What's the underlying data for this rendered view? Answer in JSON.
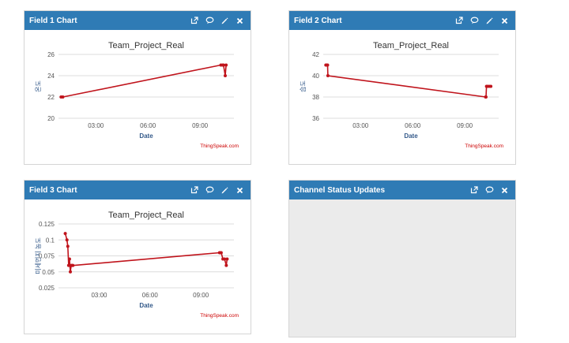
{
  "panels": [
    {
      "title": "Field 1 Chart",
      "icons": [
        "external-link-icon",
        "comment-icon",
        "pencil-icon",
        "close-icon"
      ],
      "chart_title": "Team_Project_Real",
      "ylabel": "온도",
      "xlabel": "Date",
      "credit": "ThingSpeak.com"
    },
    {
      "title": "Field 2 Chart",
      "icons": [
        "external-link-icon",
        "comment-icon",
        "pencil-icon",
        "close-icon"
      ],
      "chart_title": "Team_Project_Real",
      "ylabel": "습도",
      "xlabel": "Date",
      "credit": "ThingSpeak.com"
    },
    {
      "title": "Field 3 Chart",
      "icons": [
        "external-link-icon",
        "comment-icon",
        "pencil-icon",
        "close-icon"
      ],
      "chart_title": "Team_Project_Real",
      "ylabel": "미세먼지 농도",
      "xlabel": "Date",
      "credit": "ThingSpeak.com"
    },
    {
      "title": "Channel Status Updates",
      "icons": [
        "external-link-icon",
        "comment-icon",
        "close-icon"
      ]
    }
  ],
  "colors": {
    "header": "#2f7bb5",
    "series": "#c0141c",
    "axis_label": "#345a8a",
    "credit": "#cc0000"
  },
  "chart_data": [
    {
      "type": "line",
      "title": "Team_Project_Real",
      "xlabel": "Date",
      "ylabel": "온도",
      "x_ticks": [
        "03:00",
        "06:00",
        "09:00"
      ],
      "x_tick_hours": [
        3,
        6,
        9
      ],
      "xlim_hours": [
        0.85,
        10.95
      ],
      "y_ticks": [
        20,
        22,
        24,
        26
      ],
      "ylim": [
        20,
        26
      ],
      "grid": true,
      "series": [
        {
          "x_hours": [
            1.0,
            1.1,
            10.2,
            10.3,
            10.35,
            10.45,
            10.5
          ],
          "values": [
            22,
            22,
            25,
            25,
            25,
            24,
            25
          ]
        }
      ]
    },
    {
      "type": "line",
      "title": "Team_Project_Real",
      "xlabel": "Date",
      "ylabel": "습도",
      "x_ticks": [
        "03:00",
        "06:00",
        "09:00"
      ],
      "x_tick_hours": [
        3,
        6,
        9
      ],
      "xlim_hours": [
        0.85,
        10.95
      ],
      "y_ticks": [
        36,
        38,
        40,
        42
      ],
      "ylim": [
        36,
        42
      ],
      "grid": true,
      "series": [
        {
          "x_hours": [
            1.0,
            1.05,
            1.1,
            1.12,
            10.2,
            10.22,
            10.25,
            10.3,
            10.4,
            10.5
          ],
          "values": [
            41,
            41,
            41,
            40,
            38,
            38,
            39,
            39,
            39,
            39
          ]
        }
      ]
    },
    {
      "type": "line",
      "title": "Team_Project_Real",
      "xlabel": "Date",
      "ylabel": "미세먼지 농도",
      "x_ticks": [
        "03:00",
        "06:00",
        "09:00"
      ],
      "x_tick_hours": [
        3,
        6,
        9
      ],
      "xlim_hours": [
        0.6,
        10.95
      ],
      "y_ticks": [
        0.025,
        0.05,
        0.075,
        0.1,
        0.125
      ],
      "y_tick_labels": [
        "0.025",
        "0.05",
        "0.075",
        "0.1",
        "0.125"
      ],
      "ylim": [
        0.025,
        0.125
      ],
      "grid": true,
      "series": [
        {
          "x_hours": [
            1.0,
            1.1,
            1.15,
            1.2,
            1.25,
            1.3,
            1.35,
            1.4,
            1.45,
            10.1,
            10.15,
            10.2,
            10.3,
            10.4,
            10.5,
            10.55
          ],
          "values": [
            0.11,
            0.1,
            0.09,
            0.06,
            0.07,
            0.05,
            0.06,
            0.06,
            0.06,
            0.08,
            0.08,
            0.08,
            0.07,
            0.07,
            0.06,
            0.07
          ]
        }
      ]
    }
  ]
}
